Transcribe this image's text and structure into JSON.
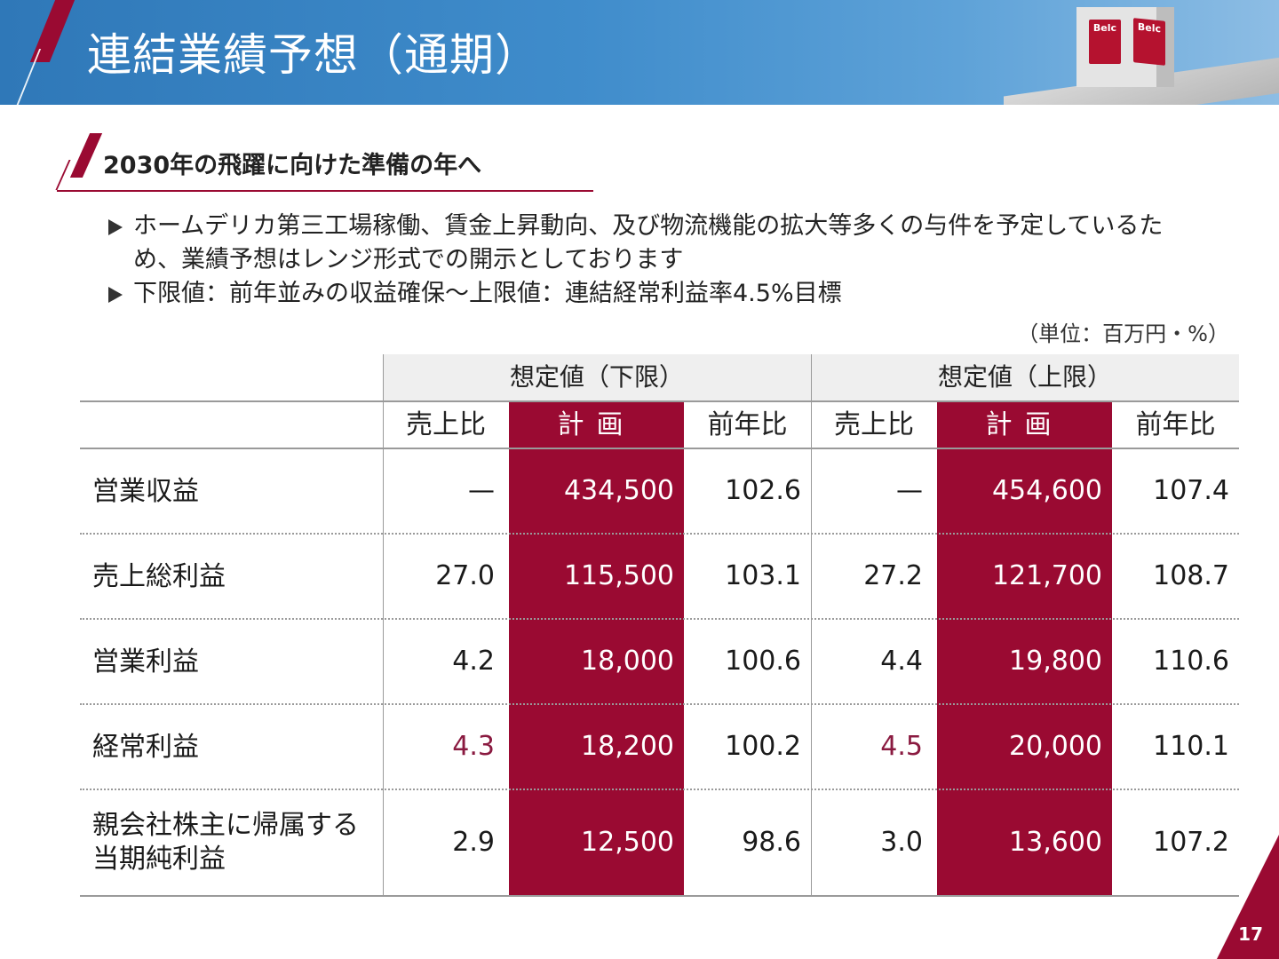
{
  "header": {
    "title": "連結業績予想（通期）"
  },
  "store_signs": [
    "Belc",
    "Belc"
  ],
  "subhead": {
    "text": "2030年の飛躍に向けた準備の年へ"
  },
  "bullets": [
    {
      "text": "ホームデリカ第三工場稼働、賃金上昇動向、及び物流機能の拡大等多くの与件を予定しているため、業績予想はレンジ形式での開示としております"
    },
    {
      "text": "下限値：前年並みの収益確保～上限値：連結経常利益率4.5%目標"
    }
  ],
  "unit": "（単位：百万円・%）",
  "table": {
    "groups": [
      "想定値（下限）",
      "想定値（上限）"
    ],
    "columns": [
      "売上比",
      "計画",
      "前年比",
      "売上比",
      "計画",
      "前年比"
    ],
    "rows": [
      {
        "label": "営業収益",
        "values": [
          "—",
          "434,500",
          "102.6",
          "—",
          "454,600",
          "107.4"
        ]
      },
      {
        "label": "売上総利益",
        "values": [
          "27.0",
          "115,500",
          "103.1",
          "27.2",
          "121,700",
          "108.7"
        ]
      },
      {
        "label": "営業利益",
        "values": [
          "4.2",
          "18,000",
          "100.6",
          "4.4",
          "19,800",
          "110.6"
        ]
      },
      {
        "label": "経常利益",
        "values": [
          "4.3",
          "18,200",
          "100.2",
          "4.5",
          "20,000",
          "110.1"
        ]
      },
      {
        "label": "親会社株主に帰属する当期純利益",
        "label_lines": [
          "親会社株主に帰属する",
          "当期純利益"
        ],
        "values": [
          "2.9",
          "12,500",
          "98.6",
          "3.0",
          "13,600",
          "107.2"
        ]
      }
    ],
    "colors": {
      "plan_bg": "#9a0a32",
      "highlight_text": "#8a1a40"
    }
  },
  "page_number": "17"
}
